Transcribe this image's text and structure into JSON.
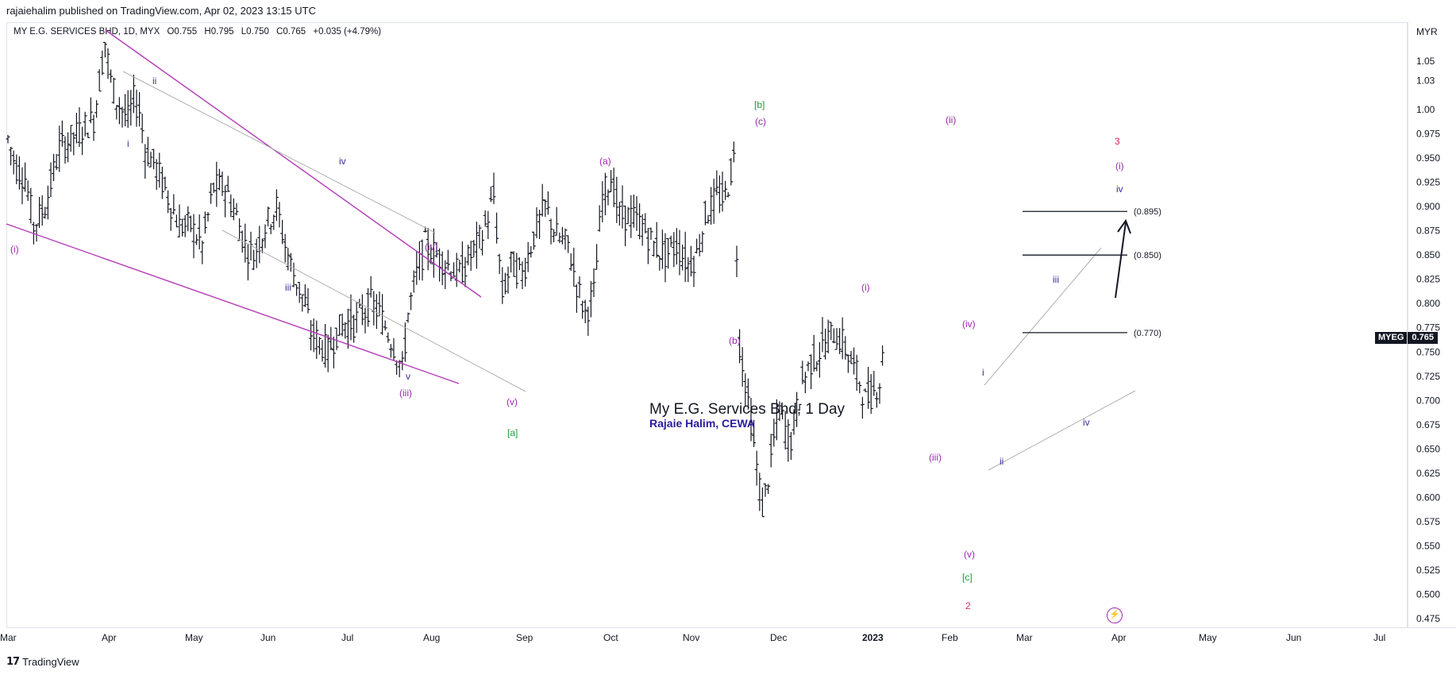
{
  "header": {
    "published_line": "rajaiehalim published on TradingView.com, Apr 02, 2023 13:15 UTC",
    "symbol": "MY E.G. SERVICES BHD, 1D, MYX",
    "open": "O0.755",
    "high": "H0.795",
    "low": "L0.750",
    "close": "C0.765",
    "change": "+0.035 (+4.79%)",
    "currency": "MYR"
  },
  "price_badge": {
    "symbol": "MYEG",
    "value": "0.765"
  },
  "annotation": {
    "title": "My E.G. Services Bhd, 1 Day",
    "author": "Rajaie Halim, CEWA"
  },
  "footer": {
    "brand": "TradingView"
  },
  "colors": {
    "wave_purple": "#9c27b0",
    "wave_blue": "#3f2b96",
    "wave_green": "#1a9e3a",
    "wave_red": "#e0245e",
    "bars": "#131722"
  },
  "chart_data": {
    "type": "ohlc",
    "ylim": [
      0.46,
      1.08
    ],
    "price_ticks": [
      "1.05",
      "1.03",
      "1.00",
      "0.975",
      "0.950",
      "0.925",
      "0.900",
      "0.875",
      "0.850",
      "0.825",
      "0.800",
      "0.775",
      "0.750",
      "0.725",
      "0.700",
      "0.675",
      "0.650",
      "0.625",
      "0.600",
      "0.575",
      "0.550",
      "0.525",
      "0.500",
      "0.475"
    ],
    "time_labels": [
      "Mar",
      "Apr",
      "May",
      "Jun",
      "Jul",
      "Aug",
      "Sep",
      "Oct",
      "Nov",
      "Dec",
      "2023",
      "Feb",
      "Mar",
      "Apr",
      "May",
      "Jun",
      "Jul"
    ],
    "close_path": [
      [
        0,
        0.97
      ],
      [
        3,
        0.94
      ],
      [
        6,
        0.93
      ],
      [
        9,
        0.88
      ],
      [
        13,
        0.9
      ],
      [
        18,
        0.96
      ],
      [
        22,
        0.97
      ],
      [
        26,
        0.98
      ],
      [
        30,
        0.99
      ],
      [
        32,
        1.03
      ],
      [
        34,
        1.07
      ],
      [
        36,
        1.03
      ],
      [
        38,
        1.01
      ],
      [
        40,
        1.0
      ],
      [
        42,
        0.99
      ],
      [
        44,
        1.01
      ],
      [
        46,
        1.0
      ],
      [
        48,
        0.96
      ],
      [
        52,
        0.94
      ],
      [
        56,
        0.91
      ],
      [
        60,
        0.88
      ],
      [
        64,
        0.88
      ],
      [
        68,
        0.86
      ],
      [
        72,
        0.92
      ],
      [
        76,
        0.92
      ],
      [
        80,
        0.89
      ],
      [
        83,
        0.86
      ],
      [
        86,
        0.85
      ],
      [
        90,
        0.88
      ],
      [
        94,
        0.9
      ],
      [
        97,
        0.86
      ],
      [
        100,
        0.83
      ],
      [
        104,
        0.8
      ],
      [
        106,
        0.77
      ],
      [
        109,
        0.76
      ],
      [
        112,
        0.75
      ],
      [
        115,
        0.77
      ],
      [
        118,
        0.78
      ],
      [
        121,
        0.78
      ],
      [
        124,
        0.79
      ],
      [
        127,
        0.8
      ],
      [
        130,
        0.79
      ],
      [
        133,
        0.77
      ],
      [
        136,
        0.75
      ],
      [
        138,
        0.73
      ],
      [
        140,
        0.79
      ],
      [
        143,
        0.83
      ],
      [
        146,
        0.86
      ],
      [
        150,
        0.85
      ],
      [
        154,
        0.84
      ],
      [
        158,
        0.83
      ],
      [
        162,
        0.85
      ],
      [
        166,
        0.87
      ],
      [
        170,
        0.91
      ],
      [
        173,
        0.81
      ],
      [
        176,
        0.84
      ],
      [
        180,
        0.83
      ],
      [
        184,
        0.87
      ],
      [
        188,
        0.9
      ],
      [
        192,
        0.87
      ],
      [
        196,
        0.86
      ],
      [
        199,
        0.82
      ],
      [
        202,
        0.79
      ],
      [
        205,
        0.81
      ],
      [
        208,
        0.91
      ],
      [
        211,
        0.93
      ],
      [
        214,
        0.89
      ],
      [
        218,
        0.89
      ],
      [
        222,
        0.88
      ],
      [
        226,
        0.86
      ],
      [
        230,
        0.85
      ],
      [
        234,
        0.86
      ],
      [
        238,
        0.84
      ],
      [
        241,
        0.85
      ],
      [
        244,
        0.89
      ],
      [
        248,
        0.91
      ],
      [
        251,
        0.91
      ],
      [
        254,
        0.95
      ],
      [
        256,
        0.76
      ],
      [
        258,
        0.72
      ],
      [
        260,
        0.68
      ],
      [
        262,
        0.63
      ],
      [
        264,
        0.59
      ],
      [
        266,
        0.62
      ],
      [
        268,
        0.66
      ],
      [
        270,
        0.69
      ],
      [
        272,
        0.67
      ],
      [
        274,
        0.66
      ],
      [
        276,
        0.69
      ],
      [
        278,
        0.72
      ],
      [
        281,
        0.74
      ],
      [
        284,
        0.75
      ],
      [
        286,
        0.76
      ],
      [
        289,
        0.77
      ],
      [
        292,
        0.76
      ],
      [
        295,
        0.74
      ],
      [
        298,
        0.72
      ],
      [
        300,
        0.7
      ],
      [
        303,
        0.71
      ],
      [
        305,
        0.72
      ],
      [
        307,
        0.765
      ]
    ],
    "horizontal_levels": [
      0.895,
      0.85,
      0.77
    ],
    "level_labels": [
      "(0.895)",
      "(0.850)",
      "(0.770)"
    ],
    "wave_labels": [
      {
        "text": "(i)",
        "color": "purple"
      },
      {
        "text": "i",
        "color": "blue"
      },
      {
        "text": "ii",
        "color": "blue"
      },
      {
        "text": "iii",
        "color": "blue"
      },
      {
        "text": "iv",
        "color": "blue"
      },
      {
        "text": "v",
        "color": "blue"
      },
      {
        "text": "(iii)",
        "color": "purple"
      },
      {
        "text": "(iv)",
        "color": "purple"
      },
      {
        "text": "(v)",
        "color": "purple"
      },
      {
        "text": "[a]",
        "color": "green"
      },
      {
        "text": "(a)",
        "color": "purple"
      },
      {
        "text": "(b)",
        "color": "purple"
      },
      {
        "text": "(c)",
        "color": "purple"
      },
      {
        "text": "[b]",
        "color": "green"
      },
      {
        "text": "(i)",
        "color": "purple"
      },
      {
        "text": "(ii)",
        "color": "purple"
      },
      {
        "text": "(iii)",
        "color": "purple"
      },
      {
        "text": "(iv)",
        "color": "purple"
      },
      {
        "text": "(v)",
        "color": "purple"
      },
      {
        "text": "[c]",
        "color": "green"
      },
      {
        "text": "2",
        "color": "red"
      },
      {
        "text": "i",
        "color": "blue"
      },
      {
        "text": "ii",
        "color": "blue"
      },
      {
        "text": "iii",
        "color": "blue"
      },
      {
        "text": "iv",
        "color": "blue"
      },
      {
        "text": "3",
        "color": "red"
      },
      {
        "text": "(i)",
        "color": "purple"
      },
      {
        "text": "iv",
        "color": "blue"
      }
    ]
  }
}
